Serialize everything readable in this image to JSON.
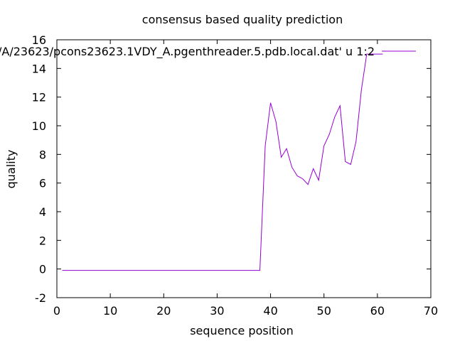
{
  "chart_data": {
    "type": "line",
    "title": "consensus based quality prediction",
    "xlabel": "sequence position",
    "ylabel": "quality",
    "xlim": [
      0,
      70
    ],
    "ylim": [
      -2,
      16
    ],
    "xticks": [
      0,
      10,
      20,
      30,
      40,
      50,
      60,
      70
    ],
    "yticks": [
      -2,
      0,
      2,
      4,
      6,
      8,
      10,
      12,
      14,
      16
    ],
    "grid": false,
    "legend_position": "top-right",
    "series": [
      {
        "name": "'/A/23623/pcons23623.1VDY_A.pgenthreader.5.pdb.local.dat' u 1:2",
        "color": "#9400d3",
        "x": [
          1,
          2,
          3,
          4,
          5,
          6,
          7,
          8,
          9,
          10,
          11,
          12,
          13,
          14,
          15,
          16,
          17,
          18,
          19,
          20,
          21,
          22,
          23,
          24,
          25,
          26,
          27,
          28,
          29,
          30,
          31,
          32,
          33,
          34,
          35,
          36,
          37,
          38,
          39,
          40,
          41,
          42,
          43,
          44,
          45,
          46,
          47,
          48,
          49,
          50,
          51,
          52,
          53,
          54,
          55,
          56,
          57,
          58,
          59,
          60,
          61
        ],
        "y": [
          -0.1,
          -0.1,
          -0.1,
          -0.1,
          -0.1,
          -0.1,
          -0.1,
          -0.1,
          -0.1,
          -0.1,
          -0.1,
          -0.1,
          -0.1,
          -0.1,
          -0.1,
          -0.1,
          -0.1,
          -0.1,
          -0.1,
          -0.1,
          -0.1,
          -0.1,
          -0.1,
          -0.1,
          -0.1,
          -0.1,
          -0.1,
          -0.1,
          -0.1,
          -0.1,
          -0.1,
          -0.1,
          -0.1,
          -0.1,
          -0.1,
          -0.1,
          -0.1,
          -0.1,
          8.6,
          11.6,
          10.3,
          7.8,
          8.4,
          7.1,
          6.5,
          6.3,
          5.9,
          7.0,
          6.2,
          8.6,
          9.4,
          10.6,
          11.4,
          7.5,
          7.3,
          8.9,
          12.5,
          15.0,
          15.0,
          15.0,
          15.0
        ]
      }
    ]
  }
}
